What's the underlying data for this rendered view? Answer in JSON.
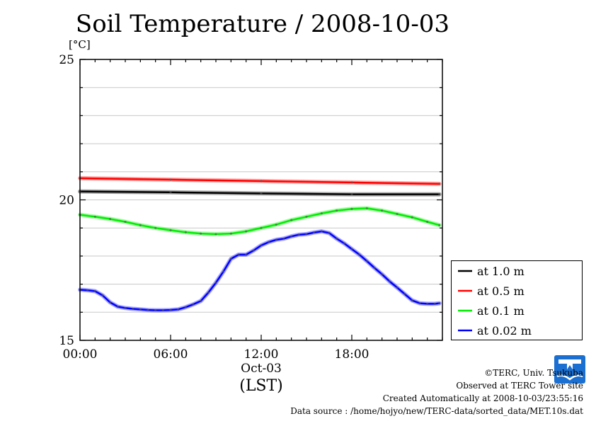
{
  "chart_data": {
    "type": "line",
    "title": "Soil Temperature / 2008-10-03",
    "ylabel": "[°C]",
    "xlabel": "(LST)",
    "date_label": "Oct-03",
    "ylim": [
      15,
      25
    ],
    "xlim": [
      0,
      24
    ],
    "yticks": [
      15,
      20,
      25
    ],
    "ytick_labels": [
      "15",
      "20",
      "25"
    ],
    "xticks": [
      0,
      6,
      12,
      18
    ],
    "xtick_labels": [
      "00:00",
      "06:00",
      "12:00",
      "18:00"
    ],
    "grid": true,
    "legend_position": "right",
    "series": [
      {
        "name": "at 1.0 m",
        "color": "#000000",
        "x": [
          0,
          6,
          12,
          18,
          23.8
        ],
        "y": [
          20.3,
          20.27,
          20.23,
          20.2,
          20.2
        ]
      },
      {
        "name": "at 0.5 m",
        "color": "#ff0000",
        "x": [
          0,
          6,
          12,
          18,
          23.8
        ],
        "y": [
          20.77,
          20.72,
          20.67,
          20.62,
          20.57
        ]
      },
      {
        "name": "at 0.1 m",
        "color": "#00ee00",
        "x": [
          0,
          1,
          2,
          3,
          4,
          5,
          6,
          7,
          8,
          9,
          10,
          11,
          12,
          13,
          14,
          15,
          16,
          17,
          18,
          19,
          20,
          21,
          22,
          23,
          23.8
        ],
        "y": [
          19.47,
          19.4,
          19.32,
          19.22,
          19.1,
          19.0,
          18.92,
          18.85,
          18.8,
          18.78,
          18.8,
          18.88,
          19.0,
          19.12,
          19.28,
          19.4,
          19.52,
          19.62,
          19.68,
          19.7,
          19.62,
          19.5,
          19.38,
          19.22,
          19.1
        ]
      },
      {
        "name": "at 0.02 m",
        "color": "#0000ff",
        "x": [
          0,
          0.5,
          1,
          1.5,
          2,
          2.5,
          3,
          3.5,
          4,
          4.5,
          5,
          5.5,
          6,
          6.5,
          7,
          7.5,
          8,
          8.5,
          9,
          9.5,
          10,
          10.5,
          11,
          11.5,
          12,
          12.5,
          13,
          13.5,
          14,
          14.5,
          15,
          15.5,
          16,
          16.5,
          17,
          17.5,
          18,
          18.5,
          19,
          19.5,
          20,
          20.5,
          21,
          21.5,
          22,
          22.5,
          23,
          23.5,
          23.8
        ],
        "y": [
          16.8,
          16.78,
          16.75,
          16.6,
          16.35,
          16.2,
          16.15,
          16.12,
          16.1,
          16.08,
          16.07,
          16.07,
          16.08,
          16.1,
          16.18,
          16.28,
          16.4,
          16.7,
          17.05,
          17.45,
          17.9,
          18.05,
          18.05,
          18.2,
          18.38,
          18.5,
          18.58,
          18.62,
          18.7,
          18.76,
          18.78,
          18.84,
          18.88,
          18.82,
          18.62,
          18.45,
          18.25,
          18.05,
          17.82,
          17.58,
          17.35,
          17.1,
          16.88,
          16.65,
          16.42,
          16.32,
          16.3,
          16.3,
          16.32
        ]
      }
    ]
  },
  "footer": {
    "copyright": "©TERC, Univ. Tsukuba",
    "site": "Observed at TERC Tower site",
    "created": "Created Automatically at 2008-10-03/23:55:16",
    "source": "Data source : /home/hojyo/new/TERC-data/sorted_data/MET.10s.dat"
  },
  "logo": {
    "text": "TERC",
    "color": "#1b6fd1"
  }
}
